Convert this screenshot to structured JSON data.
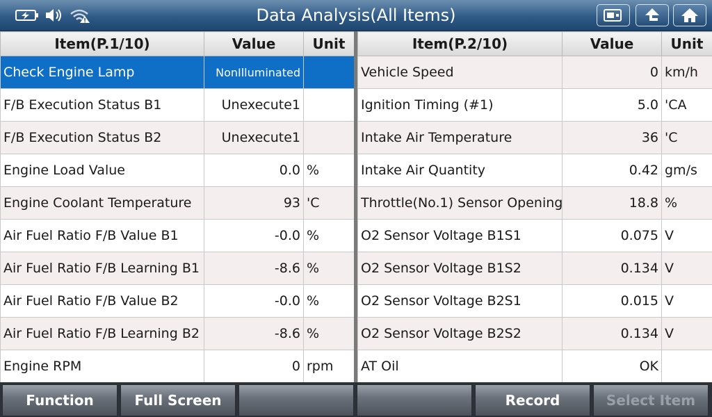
{
  "title": "Data Analysis(All Items)",
  "left_table": {
    "headers": {
      "item": "Item(P.1/10)",
      "value": "Value",
      "unit": "Unit"
    },
    "rows": [
      {
        "item": "Check Engine Lamp",
        "value": "NonIlluminated",
        "unit": ""
      },
      {
        "item": "F/B Execution Status B1",
        "value": "Unexecute1",
        "unit": ""
      },
      {
        "item": "F/B Execution Status B2",
        "value": "Unexecute1",
        "unit": ""
      },
      {
        "item": "Engine Load Value",
        "value": "0.0",
        "unit": "%"
      },
      {
        "item": "Engine Coolant Temperature",
        "value": "93",
        "unit": "'C"
      },
      {
        "item": "Air Fuel Ratio F/B Value B1",
        "value": "-0.0",
        "unit": "%"
      },
      {
        "item": "Air Fuel Ratio F/B Learning B1",
        "value": "-8.6",
        "unit": "%"
      },
      {
        "item": "Air Fuel Ratio F/B Value B2",
        "value": "-0.0",
        "unit": "%"
      },
      {
        "item": "Air Fuel Ratio F/B Learning B2",
        "value": "-8.6",
        "unit": "%"
      },
      {
        "item": "Engine RPM",
        "value": "0",
        "unit": "rpm"
      }
    ]
  },
  "right_table": {
    "headers": {
      "item": "Item(P.2/10)",
      "value": "Value",
      "unit": "Unit"
    },
    "rows": [
      {
        "item": "Vehicle Speed",
        "value": "0",
        "unit": "km/h"
      },
      {
        "item": "Ignition Timing (#1)",
        "value": "5.0",
        "unit": "'CA"
      },
      {
        "item": "Intake Air Temperature",
        "value": "36",
        "unit": "'C"
      },
      {
        "item": "Intake Air Quantity",
        "value": "0.42",
        "unit": "gm/s"
      },
      {
        "item": "Throttle(No.1) Sensor Opening",
        "value": "18.8",
        "unit": "%"
      },
      {
        "item": "O2 Sensor Voltage B1S1",
        "value": "0.075",
        "unit": "V"
      },
      {
        "item": "O2 Sensor Voltage B1S2",
        "value": "0.134",
        "unit": "V"
      },
      {
        "item": "O2 Sensor Voltage B2S1",
        "value": "0.015",
        "unit": "V"
      },
      {
        "item": "O2 Sensor Voltage B2S2",
        "value": "0.134",
        "unit": "V"
      },
      {
        "item": "AT Oil",
        "value": "OK",
        "unit": ""
      }
    ]
  },
  "bottom_buttons": [
    {
      "label": "Function",
      "enabled": true
    },
    {
      "label": "Full Screen",
      "enabled": true
    },
    {
      "label": "",
      "enabled": true
    },
    {
      "label": "",
      "enabled": true
    },
    {
      "label": "Record",
      "enabled": true
    },
    {
      "label": "Select Item",
      "enabled": false
    }
  ],
  "toolbar_icons": [
    "screenshot-icon",
    "back-arrow-icon",
    "home-icon"
  ],
  "status_icons": [
    "battery-icon",
    "speaker-icon",
    "wifi-warning-icon"
  ],
  "colors": {
    "title_bar": "#2f5a86",
    "selected_row": "#0f6fc6",
    "odd_row": "#f5eeee"
  },
  "selected_row": 0
}
